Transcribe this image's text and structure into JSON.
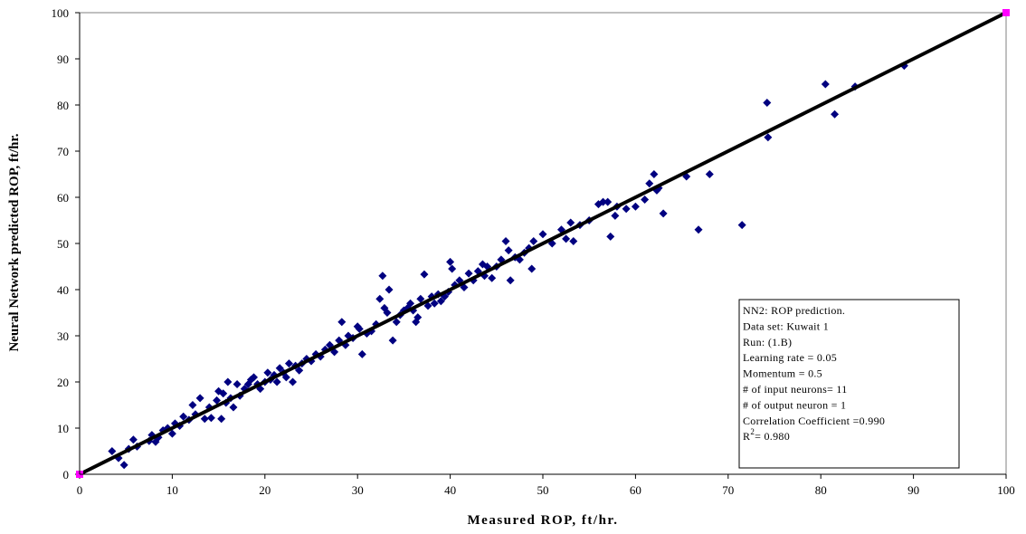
{
  "chart_data": {
    "type": "scatter",
    "title": "",
    "xlabel": "Measured ROP, ft/hr.",
    "ylabel": "Neural Network predicted ROP, ft/hr.",
    "xlim": [
      0,
      100
    ],
    "ylim": [
      0,
      100
    ],
    "xticks": [
      0,
      10,
      20,
      30,
      40,
      50,
      60,
      70,
      80,
      90,
      100
    ],
    "yticks": [
      0,
      10,
      20,
      30,
      40,
      50,
      60,
      70,
      80,
      90,
      100
    ],
    "grid": false,
    "colors": {
      "points": "#000080",
      "line": "#000000",
      "endpoints": "#ff00ff"
    },
    "fit_line": {
      "x": [
        0,
        100
      ],
      "y": [
        0,
        100
      ]
    },
    "endpoint_markers": {
      "x": [
        0,
        100
      ],
      "y": [
        0,
        100
      ]
    },
    "series": [
      {
        "marker": "diamond",
        "x": [
          3.5,
          4.2,
          4.8,
          5.3,
          5.8,
          6.2,
          7.5,
          7.8,
          8.2,
          8.5,
          9.0,
          9.5,
          10.0,
          10.3,
          10.8,
          11.2,
          11.8,
          12.2,
          12.5,
          13.0,
          13.5,
          14.0,
          14.2,
          14.8,
          15.0,
          15.3,
          15.5,
          15.8,
          16.0,
          16.3,
          16.6,
          17.0,
          17.3,
          17.8,
          18.2,
          18.5,
          18.8,
          19.2,
          19.5,
          20.0,
          20.3,
          20.6,
          21.0,
          21.3,
          21.6,
          22.0,
          22.3,
          22.6,
          23.0,
          23.3,
          23.7,
          24.0,
          24.5,
          25.0,
          25.5,
          26.0,
          26.5,
          27.0,
          27.5,
          28.0,
          28.3,
          28.7,
          29.0,
          29.5,
          30.0,
          30.2,
          30.5,
          31.0,
          31.5,
          32.0,
          32.4,
          32.7,
          32.9,
          33.2,
          33.4,
          33.8,
          34.2,
          34.6,
          35.0,
          35.4,
          35.7,
          36.0,
          36.3,
          36.5,
          36.8,
          37.2,
          37.6,
          38.0,
          38.3,
          38.7,
          39.0,
          39.4,
          39.8,
          40.0,
          40.2,
          40.5,
          41.0,
          41.5,
          42.0,
          42.5,
          43.0,
          43.5,
          43.7,
          44.0,
          44.5,
          45.0,
          45.5,
          46.0,
          46.3,
          46.5,
          47.0,
          47.5,
          48.0,
          48.5,
          48.8,
          49.0,
          50.0,
          51.0,
          52.0,
          52.5,
          53.0,
          53.3,
          54.0,
          55.0,
          56.0,
          56.5,
          57.0,
          57.3,
          57.8,
          58.0,
          59.0,
          60.0,
          61.0,
          61.5,
          62.0,
          62.3,
          62.5,
          63.0,
          65.5,
          66.8,
          68.0,
          71.5,
          74.2,
          74.3,
          80.5,
          81.5,
          83.7,
          89.0
        ],
        "y": [
          5.0,
          3.5,
          2.0,
          5.5,
          7.5,
          6.0,
          7.2,
          8.5,
          7.0,
          8.0,
          9.5,
          10.0,
          8.8,
          11.0,
          10.5,
          12.5,
          11.8,
          15.0,
          13.0,
          16.5,
          12.0,
          14.5,
          12.2,
          16.0,
          18.0,
          12.0,
          17.5,
          15.5,
          20.0,
          16.5,
          14.5,
          19.5,
          17.0,
          18.5,
          19.5,
          20.5,
          21.0,
          19.5,
          18.5,
          20.0,
          22.0,
          20.5,
          21.5,
          20.0,
          23.0,
          22.0,
          21.0,
          24.0,
          20.0,
          23.5,
          22.5,
          24.0,
          25.0,
          24.5,
          26.0,
          25.5,
          27.0,
          28.0,
          26.5,
          29.0,
          33.0,
          28.0,
          30.0,
          29.5,
          32.0,
          31.5,
          26.0,
          30.5,
          31.0,
          32.5,
          38.0,
          43.0,
          36.0,
          35.0,
          40.0,
          29.0,
          33.0,
          34.5,
          35.5,
          36.0,
          37.0,
          35.5,
          33.0,
          34.0,
          38.0,
          43.3,
          36.5,
          38.5,
          37.0,
          39.0,
          37.5,
          38.5,
          39.5,
          46.0,
          44.5,
          41.0,
          42.0,
          40.5,
          43.5,
          42.0,
          44.0,
          45.5,
          43.0,
          45.0,
          42.5,
          45.0,
          46.5,
          50.5,
          48.5,
          42.0,
          47.0,
          46.5,
          48.0,
          49.0,
          44.5,
          50.5,
          52.0,
          50.0,
          53.0,
          51.0,
          54.5,
          50.5,
          54.0,
          55.0,
          58.5,
          59.0,
          59.0,
          51.5,
          56.0,
          58.0,
          57.5,
          58.0,
          59.5,
          63.0,
          65.0,
          61.5,
          62.0,
          56.5,
          64.5,
          53.0,
          65.0,
          54.0,
          80.5,
          73.0,
          84.5,
          78.0,
          84.0,
          88.5
        ]
      }
    ],
    "legend_box": [
      {
        "text": "NN2: ROP prediction."
      },
      {
        "text": "Data set: Kuwait 1"
      },
      {
        "text": "Run: (1.B)"
      },
      {
        "text": "Learning rate = 0.05"
      },
      {
        "text": "Momentum = 0.5"
      },
      {
        "text": "# of input neurons= 11"
      },
      {
        "text": "# of output neuron = 1"
      },
      {
        "text": "Correlation Coefficient =0.990"
      },
      {
        "text": "R",
        "superscript": "2",
        "suffix": "= 0.980"
      }
    ],
    "legend_placement": "bottom-right"
  }
}
